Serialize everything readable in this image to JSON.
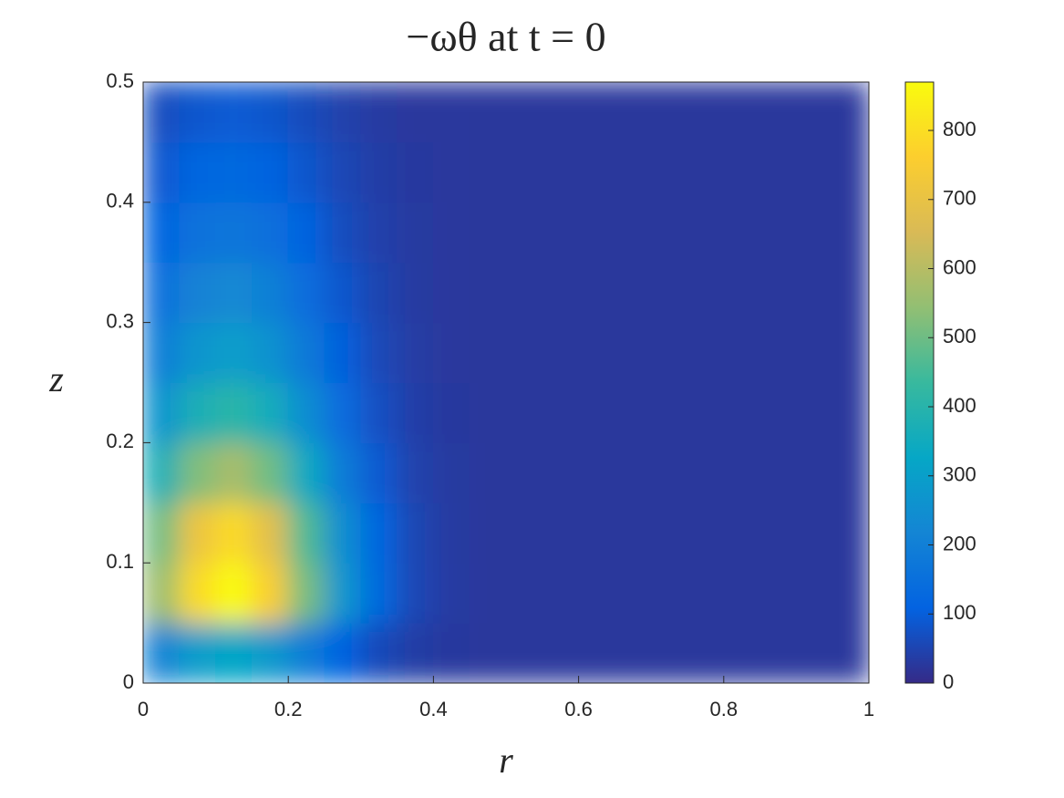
{
  "chart_data": {
    "type": "heatmap",
    "title": "−ωθ at t = 0",
    "xlabel": "r",
    "ylabel": "z",
    "x": [
      0.025,
      0.075,
      0.125,
      0.175,
      0.225,
      0.275,
      0.325,
      0.375,
      0.425,
      0.475,
      0.525,
      0.575,
      0.625,
      0.675,
      0.725,
      0.775,
      0.825,
      0.875,
      0.925,
      0.975
    ],
    "y": [
      0.025,
      0.075,
      0.125,
      0.175,
      0.225,
      0.275,
      0.325,
      0.375,
      0.425,
      0.475
    ],
    "z": [
      [
        213,
        293,
        323,
        281,
        195,
        111,
        61,
        36,
        28,
        25,
        25,
        25,
        25,
        25,
        25,
        25,
        25,
        25,
        25,
        25
      ],
      [
        561,
        790,
        875,
        756,
        510,
        272,
        127,
        56,
        33,
        25,
        25,
        25,
        25,
        25,
        25,
        25,
        25,
        25,
        25,
        25
      ],
      [
        507,
        714,
        790,
        683,
        461,
        247,
        117,
        53,
        32,
        25,
        25,
        25,
        25,
        25,
        25,
        25,
        25,
        25,
        25,
        25
      ],
      [
        373,
        523,
        578,
        501,
        340,
        185,
        91,
        45,
        30,
        25,
        25,
        25,
        25,
        25,
        25,
        25,
        25,
        25,
        25,
        25
      ],
      [
        266,
        370,
        408,
        354,
        243,
        136,
        71,
        39,
        28,
        25,
        25,
        25,
        25,
        25,
        25,
        25,
        25,
        25,
        25,
        25
      ],
      [
        196,
        270,
        297,
        259,
        180,
        104,
        58,
        35,
        27,
        25,
        25,
        25,
        25,
        25,
        25,
        25,
        25,
        25,
        25,
        25
      ],
      [
        154,
        209,
        229,
        200,
        141,
        84,
        49,
        32,
        27,
        25,
        25,
        25,
        25,
        25,
        25,
        25,
        25,
        25,
        25,
        25
      ],
      [
        116,
        156,
        170,
        150,
        108,
        67,
        42,
        30,
        26,
        25,
        25,
        25,
        25,
        25,
        25,
        25,
        25,
        25,
        25,
        25
      ],
      [
        89,
        117,
        127,
        113,
        83,
        55,
        37,
        29,
        26,
        25,
        25,
        25,
        25,
        25,
        25,
        25,
        25,
        25,
        25,
        25
      ],
      [
        68,
        86,
        93,
        83,
        64,
        45,
        33,
        27,
        26,
        25,
        25,
        25,
        25,
        25,
        25,
        25,
        25,
        25,
        25,
        25
      ]
    ],
    "xlim": [
      0,
      1
    ],
    "xticks": [
      0,
      0.2,
      0.4,
      0.6,
      0.8,
      1
    ],
    "ylim": [
      0,
      0.5
    ],
    "yticks": [
      0,
      0.1,
      0.2,
      0.3,
      0.4,
      0.5
    ],
    "clim": [
      0,
      870
    ],
    "cticks": [
      0,
      100,
      200,
      300,
      400,
      500,
      600,
      700,
      800
    ],
    "colormap": [
      "#352a87",
      "#0363e1",
      "#1485d4",
      "#06a7c6",
      "#38b99e",
      "#92bf73",
      "#d9ba56",
      "#fcce2e",
      "#f9fb0e"
    ]
  }
}
